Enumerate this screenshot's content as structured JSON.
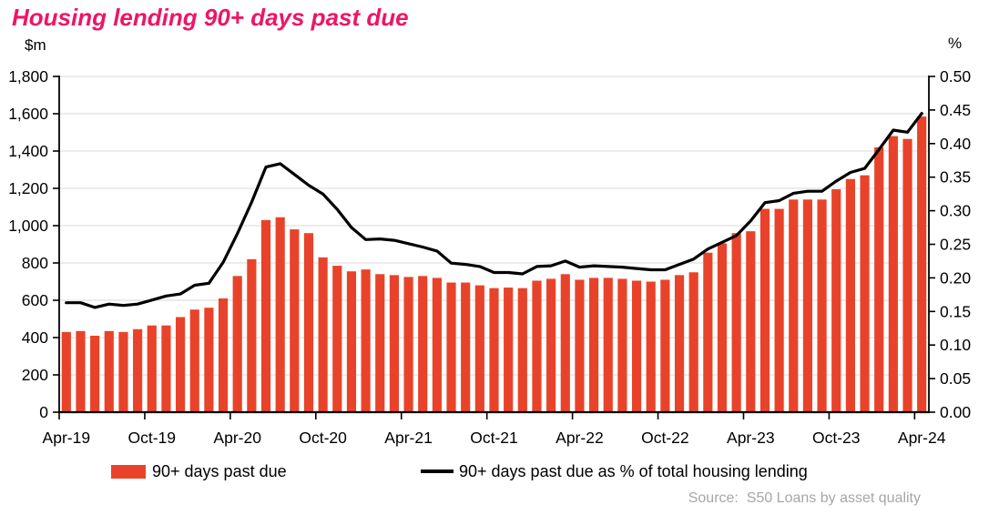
{
  "title": "Housing lending 90+ days past due",
  "title_color": "#EE1566",
  "left_axis": {
    "unit_label": "$m",
    "tick_labels_bottom_up": [
      "0",
      "200",
      "400",
      "600",
      "800",
      "1,000",
      "1,200",
      "1,400",
      "1,600",
      "1,800"
    ]
  },
  "right_axis": {
    "unit_label": "%",
    "tick_labels_bottom_up": [
      "0.00",
      "0.05",
      "0.10",
      "0.15",
      "0.20",
      "0.25",
      "0.30",
      "0.35",
      "0.40",
      "0.45",
      "0.50"
    ]
  },
  "x_axis": {
    "tick_labels": [
      "Apr-19",
      "Oct-19",
      "Apr-20",
      "Oct-20",
      "Apr-21",
      "Oct-21",
      "Apr-22",
      "Oct-22",
      "Apr-23",
      "Oct-23",
      "Apr-24"
    ]
  },
  "legend": {
    "bar_label": "90+ days past due",
    "line_label": "90+ days past due as % of total housing lending"
  },
  "source": "Source:  S50 Loans by asset quality",
  "colors": {
    "bar": "#E8432A",
    "line": "#000000",
    "gridline": "#D9D9D9",
    "axis": "#000000",
    "source_text": "#A6A6A6"
  },
  "chart_data": {
    "type": "combo-bar-line",
    "x": [
      "Apr-19",
      "May-19",
      "Jun-19",
      "Jul-19",
      "Aug-19",
      "Sep-19",
      "Oct-19",
      "Nov-19",
      "Dec-19",
      "Jan-20",
      "Feb-20",
      "Mar-20",
      "Apr-20",
      "May-20",
      "Jun-20",
      "Jul-20",
      "Aug-20",
      "Sep-20",
      "Oct-20",
      "Nov-20",
      "Dec-20",
      "Jan-21",
      "Feb-21",
      "Mar-21",
      "Apr-21",
      "May-21",
      "Jun-21",
      "Jul-21",
      "Aug-21",
      "Sep-21",
      "Oct-21",
      "Nov-21",
      "Dec-21",
      "Jan-22",
      "Feb-22",
      "Mar-22",
      "Apr-22",
      "May-22",
      "Jun-22",
      "Jul-22",
      "Aug-22",
      "Sep-22",
      "Oct-22",
      "Nov-22",
      "Dec-22",
      "Jan-23",
      "Feb-23",
      "Mar-23",
      "Apr-23",
      "May-23",
      "Jun-23",
      "Jul-23",
      "Aug-23",
      "Sep-23",
      "Oct-23",
      "Nov-23",
      "Dec-23",
      "Jan-24",
      "Feb-24",
      "Mar-24",
      "Apr-24"
    ],
    "series": [
      {
        "name": "90+ days past due",
        "type": "bar",
        "axis": "left",
        "units": "$m",
        "values": [
          430,
          435,
          410,
          435,
          430,
          445,
          465,
          465,
          510,
          550,
          560,
          610,
          730,
          820,
          1030,
          1045,
          980,
          960,
          830,
          785,
          755,
          765,
          740,
          735,
          725,
          730,
          720,
          695,
          695,
          680,
          665,
          668,
          665,
          705,
          715,
          740,
          710,
          720,
          720,
          715,
          705,
          700,
          710,
          735,
          750,
          855,
          905,
          960,
          970,
          1090,
          1090,
          1140,
          1140,
          1140,
          1195,
          1250,
          1270,
          1420,
          1480,
          1465,
          1585
        ]
      },
      {
        "name": "90+ days past due as % of total housing lending",
        "type": "line",
        "axis": "right",
        "units": "%",
        "values": [
          0.163,
          0.163,
          0.156,
          0.161,
          0.159,
          0.161,
          0.167,
          0.173,
          0.176,
          0.189,
          0.192,
          0.223,
          0.266,
          0.313,
          0.365,
          0.37,
          0.354,
          0.338,
          0.325,
          0.302,
          0.275,
          0.257,
          0.258,
          0.256,
          0.251,
          0.246,
          0.24,
          0.222,
          0.22,
          0.217,
          0.208,
          0.208,
          0.206,
          0.217,
          0.218,
          0.225,
          0.216,
          0.218,
          0.217,
          0.216,
          0.214,
          0.212,
          0.212,
          0.22,
          0.228,
          0.243,
          0.253,
          0.263,
          0.285,
          0.312,
          0.315,
          0.326,
          0.329,
          0.329,
          0.344,
          0.357,
          0.363,
          0.391,
          0.42,
          0.417,
          0.445
        ]
      }
    ],
    "left_ylim": [
      0,
      1800
    ],
    "left_tick_step": 200,
    "right_ylim": [
      0,
      0.5
    ],
    "right_tick_step": 0.05,
    "grid": "horizontal",
    "legend_position": "bottom"
  }
}
